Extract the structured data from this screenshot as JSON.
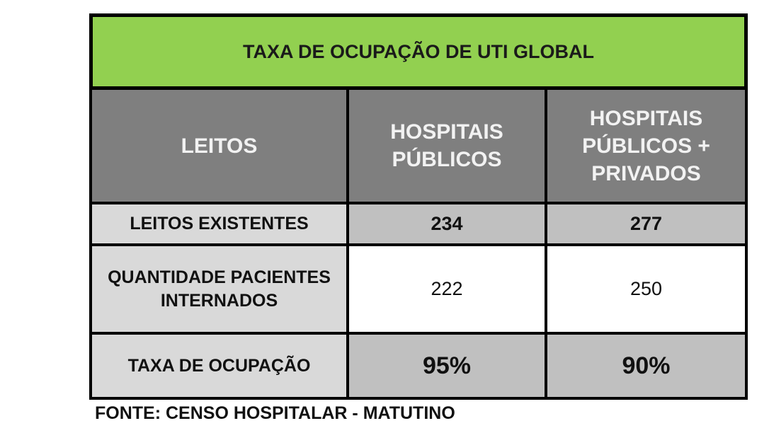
{
  "table": {
    "title": "TAXA DE OCUPAÇÃO DE UTI GLOBAL",
    "headers": [
      "LEITOS",
      "HOSPITAIS\nPÚBLICOS",
      "HOSPITAIS\nPÚBLICOS +\nPRIVADOS"
    ],
    "rows": [
      {
        "label": "LEITOS EXISTENTES",
        "publicos": "234",
        "publicos_privados": "277"
      },
      {
        "label": "QUANTIDADE PACIENTES\nINTERNADOS",
        "publicos": "222",
        "publicos_privados": "250"
      },
      {
        "label": "TAXA DE OCUPAÇÃO",
        "publicos": "95%",
        "publicos_privados": "90%"
      }
    ]
  },
  "source": "FONTE: CENSO HOSPITALAR - MATUTINO",
  "colors": {
    "title_bg": "#92d050",
    "header_bg": "#7f7f7f",
    "label_bg": "#d9d9d9",
    "value_bg": "#c0c0c0",
    "border": "#000000"
  }
}
